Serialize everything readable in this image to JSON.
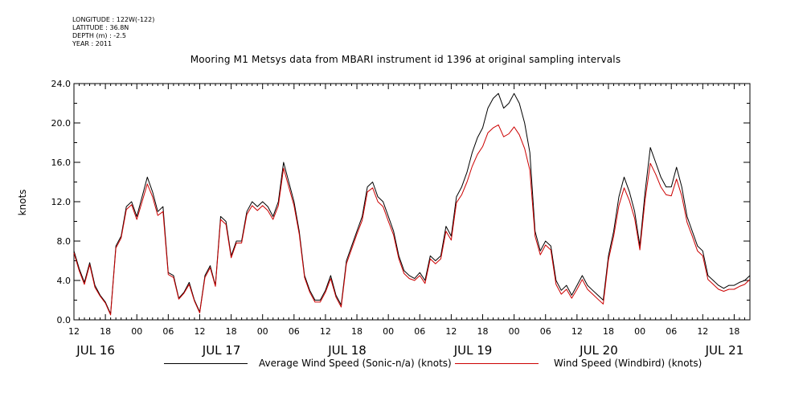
{
  "header": {
    "longitude": "LONGITUDE : 122W(-122)",
    "latitude": "LATITUDE : 36.8N",
    "depth": "DEPTH (m) : -2.5",
    "year": "YEAR : 2011"
  },
  "chart_data": {
    "type": "line",
    "title": "Mooring M1 Metsys data from MBARI instrument id 1396 at original sampling intervals",
    "ylabel": "knots",
    "ylim": [
      0,
      24
    ],
    "y_ticks": [
      "0.0",
      "4.0",
      "8.0",
      "12.0",
      "16.0",
      "20.0",
      "24.0"
    ],
    "x_range_hours": [
      12,
      141
    ],
    "x_tick_labels": [
      "12",
      "18",
      "00",
      "06",
      "12",
      "18",
      "00",
      "06",
      "12",
      "18",
      "00",
      "06",
      "12",
      "18",
      "00",
      "06",
      "12",
      "18",
      "00",
      "06",
      "12",
      "18"
    ],
    "day_labels": [
      "JUL 16",
      "JUL 17",
      "JUL 18",
      "JUL 19",
      "JUL 20",
      "JUL 21"
    ],
    "grid": false,
    "legend_position": "bottom",
    "series": [
      {
        "name": "Average Wind Speed (Sonic-n/a) (knots)",
        "color": "#000000",
        "x": [
          12,
          13,
          14,
          15,
          16,
          17,
          18,
          19,
          20,
          21,
          22,
          23,
          24,
          25,
          26,
          27,
          28,
          29,
          30,
          31,
          32,
          33,
          34,
          35,
          36,
          37,
          38,
          39,
          40,
          41,
          42,
          43,
          44,
          45,
          46,
          47,
          48,
          49,
          50,
          51,
          52,
          53,
          54,
          55,
          56,
          57,
          58,
          59,
          60,
          61,
          62,
          63,
          64,
          65,
          66,
          67,
          68,
          69,
          70,
          71,
          72,
          73,
          74,
          75,
          76,
          77,
          78,
          79,
          80,
          81,
          82,
          83,
          84,
          85,
          86,
          87,
          88,
          89,
          90,
          91,
          92,
          93,
          94,
          95,
          96,
          97,
          98,
          99,
          100,
          101,
          102,
          103,
          104,
          105,
          106,
          107,
          108,
          109,
          110,
          111,
          112,
          113,
          114,
          115,
          116,
          117,
          118,
          119,
          120,
          121,
          122,
          123,
          124,
          125,
          126,
          127,
          128,
          129,
          130,
          131,
          132,
          133,
          134,
          135,
          136,
          137,
          138,
          139,
          140,
          141
        ],
        "values": [
          7.0,
          5.2,
          3.8,
          5.8,
          3.5,
          2.5,
          1.8,
          0.6,
          7.5,
          8.5,
          11.5,
          12.0,
          10.5,
          12.5,
          14.5,
          13.0,
          11.0,
          11.5,
          4.8,
          4.5,
          2.2,
          2.8,
          3.8,
          2.0,
          0.8,
          4.5,
          5.5,
          3.5,
          10.5,
          10.0,
          6.5,
          8.0,
          8.0,
          11.0,
          12.0,
          11.5,
          12.0,
          11.5,
          10.5,
          12.0,
          16.0,
          14.0,
          12.0,
          9.0,
          4.5,
          3.0,
          2.0,
          2.0,
          3.0,
          4.5,
          2.5,
          1.5,
          6.0,
          7.5,
          9.0,
          10.5,
          13.5,
          14.0,
          12.5,
          12.0,
          10.5,
          9.0,
          6.5,
          5.0,
          4.5,
          4.2,
          4.8,
          4.0,
          6.5,
          6.0,
          6.5,
          9.5,
          8.5,
          12.5,
          13.5,
          15.0,
          17.0,
          18.5,
          19.5,
          21.5,
          22.5,
          23.0,
          21.5,
          22.0,
          23.0,
          22.0,
          20.0,
          17.0,
          9.0,
          7.0,
          8.0,
          7.5,
          4.0,
          3.0,
          3.5,
          2.5,
          3.5,
          4.5,
          3.5,
          3.0,
          2.5,
          2.0,
          6.5,
          9.0,
          12.5,
          14.5,
          13.0,
          11.0,
          7.5,
          13.0,
          17.5,
          16.0,
          14.5,
          13.5,
          13.5,
          15.5,
          13.5,
          10.5,
          9.0,
          7.5,
          7.0,
          4.5,
          4.0,
          3.5,
          3.2,
          3.5,
          3.5,
          3.8,
          4.0,
          4.5
        ]
      },
      {
        "name": "Wind Speed (Windbird) (knots)",
        "color": "#cc0000",
        "x": [
          12,
          13,
          14,
          15,
          16,
          17,
          18,
          19,
          20,
          21,
          22,
          23,
          24,
          25,
          26,
          27,
          28,
          29,
          30,
          31,
          32,
          33,
          34,
          35,
          36,
          37,
          38,
          39,
          40,
          41,
          42,
          43,
          44,
          45,
          46,
          47,
          48,
          49,
          50,
          51,
          52,
          53,
          54,
          55,
          56,
          57,
          58,
          59,
          60,
          61,
          62,
          63,
          64,
          65,
          66,
          67,
          68,
          69,
          70,
          71,
          72,
          73,
          74,
          75,
          76,
          77,
          78,
          79,
          80,
          81,
          82,
          83,
          84,
          85,
          86,
          87,
          88,
          89,
          90,
          91,
          92,
          93,
          94,
          95,
          96,
          97,
          98,
          99,
          100,
          101,
          102,
          103,
          104,
          105,
          106,
          107,
          108,
          109,
          110,
          111,
          112,
          113,
          114,
          115,
          116,
          117,
          118,
          119,
          120,
          121,
          122,
          123,
          124,
          125,
          126,
          127,
          128,
          129,
          130,
          131,
          132,
          133,
          134,
          135,
          136,
          137,
          138,
          139,
          140,
          141
        ],
        "values": [
          6.8,
          5.0,
          3.6,
          5.6,
          3.3,
          2.4,
          1.7,
          0.5,
          7.3,
          8.3,
          11.2,
          11.7,
          10.2,
          12.0,
          13.8,
          12.5,
          10.6,
          11.0,
          4.6,
          4.3,
          2.1,
          2.7,
          3.6,
          1.9,
          0.7,
          4.3,
          5.3,
          3.4,
          10.2,
          9.7,
          6.3,
          7.8,
          7.8,
          10.7,
          11.6,
          11.1,
          11.6,
          11.1,
          10.2,
          11.6,
          15.4,
          13.5,
          11.6,
          8.7,
          4.3,
          2.8,
          1.8,
          1.8,
          2.8,
          4.2,
          2.3,
          1.3,
          5.7,
          7.2,
          8.7,
          10.1,
          13.0,
          13.4,
          12.0,
          11.5,
          10.0,
          8.6,
          6.2,
          4.7,
          4.2,
          4.0,
          4.5,
          3.7,
          6.2,
          5.7,
          6.2,
          9.0,
          8.1,
          11.9,
          12.7,
          14.0,
          15.6,
          16.8,
          17.6,
          19.0,
          19.5,
          19.8,
          18.6,
          18.9,
          19.6,
          18.8,
          17.4,
          15.2,
          8.5,
          6.6,
          7.6,
          7.1,
          3.6,
          2.6,
          3.1,
          2.2,
          3.1,
          4.1,
          3.1,
          2.6,
          2.1,
          1.6,
          6.1,
          8.5,
          11.6,
          13.4,
          12.1,
          10.3,
          7.1,
          12.2,
          15.9,
          14.8,
          13.5,
          12.7,
          12.6,
          14.3,
          12.6,
          9.9,
          8.5,
          7.0,
          6.5,
          4.1,
          3.6,
          3.1,
          2.9,
          3.1,
          3.1,
          3.4,
          3.6,
          4.1
        ]
      }
    ]
  }
}
